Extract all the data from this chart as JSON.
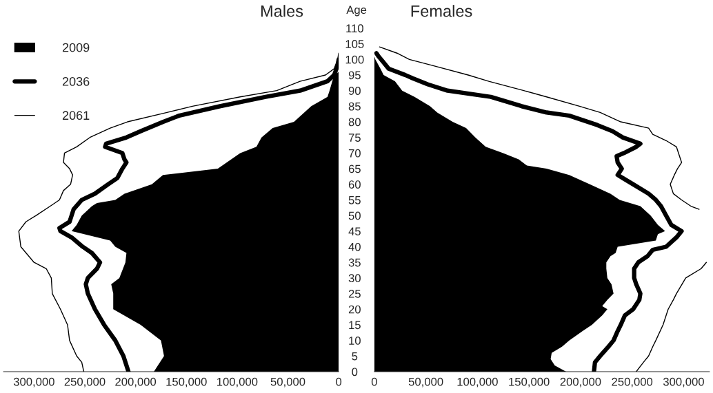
{
  "chart_data": [
    {
      "type": "line",
      "title": "Males",
      "orientation": "horizontal",
      "legend": "top left",
      "tick_labels": "x",
      "xlim": [
        330000,
        0
      ],
      "xticks": [
        {
          "value": 300000,
          "label": "300,000"
        },
        {
          "value": 250000,
          "label": "250,000"
        },
        {
          "value": 200000,
          "label": "200,000"
        },
        {
          "value": 150000,
          "label": "150,000"
        },
        {
          "value": 100000,
          "label": "100,000"
        },
        {
          "value": 50000,
          "label": "50,000"
        },
        0
      ],
      "ylim": [
        0,
        110
      ],
      "yticks": [
        0,
        5,
        10,
        15,
        20,
        25,
        30,
        35,
        40,
        45,
        50,
        55,
        60,
        65,
        70,
        75,
        80,
        85,
        90,
        95,
        100,
        105,
        110
      ],
      "series": [
        {
          "name": "2009",
          "type": "area",
          "color": "#000000",
          "x": [
            0,
            5,
            10,
            15,
            20,
            22,
            25,
            28,
            30,
            35,
            38,
            40,
            42,
            45,
            47,
            50,
            53,
            54,
            55,
            57,
            60,
            63,
            65,
            70,
            72,
            75,
            78,
            80,
            85,
            88,
            90,
            95,
            96
          ],
          "values": [
            182000,
            172000,
            175000,
            195000,
            222000,
            222000,
            222000,
            224000,
            216000,
            210000,
            209000,
            220000,
            225000,
            263000,
            258000,
            253000,
            243000,
            238000,
            220000,
            211000,
            184000,
            173000,
            119000,
            97000,
            81000,
            76000,
            65000,
            44000,
            27000,
            11000,
            9000,
            4500,
            0
          ]
        },
        {
          "name": "2036",
          "color": "#000000",
          "x": [
            0,
            5,
            10,
            15,
            20,
            25,
            28,
            30,
            33,
            35,
            38,
            40,
            43,
            45,
            46,
            48,
            50,
            52,
            55,
            57,
            60,
            62,
            65,
            67,
            68,
            70,
            72,
            73,
            75,
            77,
            80,
            82,
            85,
            88,
            90,
            93,
            95,
            98,
            100
          ],
          "values": [
            207000,
            212000,
            220000,
            231000,
            240000,
            247000,
            249000,
            247000,
            238000,
            235000,
            243000,
            252000,
            263000,
            274000,
            275000,
            265000,
            263000,
            261000,
            253000,
            240000,
            227000,
            218000,
            213000,
            209000,
            211000,
            213000,
            230000,
            229000,
            209000,
            195000,
            173000,
            157000,
            117000,
            72000,
            38000,
            11000,
            4500,
            1000,
            0
          ]
        },
        {
          "name": "2061",
          "color": "#000000",
          "x": [
            0,
            3,
            5,
            10,
            15,
            20,
            25,
            30,
            33,
            35,
            40,
            45,
            48,
            50,
            53,
            55,
            58,
            60,
            63,
            65,
            67,
            70,
            72,
            75,
            78,
            80,
            83,
            85,
            88,
            90,
            93,
            95,
            97,
            100,
            102
          ],
          "values": [
            251000,
            253000,
            258000,
            265000,
            267000,
            274000,
            282000,
            283000,
            288000,
            300000,
            313000,
            315000,
            308000,
            298000,
            284000,
            275000,
            271000,
            264000,
            262000,
            265000,
            271000,
            270000,
            258000,
            245000,
            225000,
            208000,
            169000,
            144000,
            97000,
            61000,
            38000,
            13000,
            4500,
            1000,
            0
          ]
        }
      ]
    },
    {
      "type": "line",
      "title": "Females",
      "ylabel": "Age",
      "orientation": "horizontal",
      "xlim": [
        0,
        325000
      ],
      "xticks": [
        0,
        {
          "value": 50000,
          "label": "50,000"
        },
        {
          "value": 100000,
          "label": "100,000"
        },
        {
          "value": 150000,
          "label": "150,000"
        },
        {
          "value": 200000,
          "label": "200,000"
        },
        {
          "value": 250000,
          "label": "250,000"
        },
        {
          "value": 300000,
          "label": "300,000"
        }
      ],
      "ylim": [
        0,
        110
      ],
      "yticks": [
        0,
        5,
        10,
        15,
        20,
        25,
        30,
        35,
        40,
        45,
        50,
        55,
        60,
        65,
        70,
        75,
        80,
        85,
        90,
        95,
        100,
        105,
        110
      ],
      "series": [
        {
          "type": "area",
          "color": "#000000",
          "x": [
            0,
            2,
            4,
            6,
            8,
            10,
            13,
            15,
            18,
            20,
            21,
            23,
            25,
            28,
            30,
            33,
            35,
            37,
            38,
            40,
            42,
            44,
            45,
            47,
            50,
            53,
            55,
            57,
            60,
            63,
            65,
            66,
            68,
            70,
            72,
            75,
            78,
            80,
            83,
            85,
            88,
            90,
            93,
            95,
            97,
            100,
            101
          ],
          "values": [
            186000,
            175000,
            171000,
            172000,
            182000,
            189000,
            202000,
            211000,
            221000,
            226000,
            221000,
            226000,
            232000,
            230000,
            226000,
            225000,
            225000,
            229000,
            234000,
            236000,
            273000,
            275000,
            282000,
            275000,
            268000,
            258000,
            238000,
            229000,
            209000,
            189000,
            167000,
            148000,
            140000,
            125000,
            108000,
            98000,
            89000,
            76000,
            61000,
            54000,
            39000,
            27000,
            20000,
            9000,
            6000,
            1000,
            0
          ]
        },
        {
          "color": "#000000",
          "x": [
            0,
            3,
            5,
            8,
            10,
            13,
            15,
            18,
            20,
            23,
            25,
            28,
            30,
            33,
            35,
            37,
            39,
            40,
            43,
            45,
            47,
            50,
            53,
            55,
            57,
            60,
            62,
            63,
            65,
            67,
            69,
            70,
            72,
            73,
            75,
            77,
            79,
            80,
            82,
            83,
            85,
            88,
            90,
            92,
            94,
            95,
            97,
            99,
            101,
            102
          ],
          "values": [
            213000,
            214000,
            219000,
            227000,
            232000,
            236000,
            239000,
            243000,
            251000,
            257000,
            258000,
            254000,
            252000,
            252000,
            256000,
            265000,
            270000,
            283000,
            293000,
            298000,
            288000,
            283000,
            278000,
            273000,
            266000,
            251000,
            241000,
            236000,
            240000,
            236000,
            235000,
            242000,
            254000,
            258000,
            241000,
            231000,
            216000,
            207000,
            189000,
            167000,
            143000,
            113000,
            71000,
            52000,
            37000,
            30000,
            14000,
            9000,
            4000,
            2000
          ]
        },
        {
          "color": "#000000",
          "x": [
            0,
            3,
            5,
            8,
            10,
            15,
            18,
            20,
            23,
            25,
            30,
            33,
            35,
            38,
            40,
            45,
            50,
            52,
            53,
            55,
            57,
            60,
            63,
            65,
            67,
            70,
            72,
            74,
            76,
            78,
            80,
            83,
            85,
            88,
            90,
            93,
            95,
            98,
            100,
            102,
            104
          ],
          "values": [
            254000,
            261000,
            266000,
            270000,
            273000,
            280000,
            283000,
            285000,
            290000,
            293000,
            302000,
            317000,
            322000,
            null,
            null,
            null,
            null,
            315000,
            307000,
            298000,
            290000,
            287000,
            291000,
            294000,
            298000,
            295000,
            293000,
            283000,
            270000,
            266000,
            239000,
            219000,
            199000,
            167000,
            145000,
            111000,
            91000,
            57000,
            34000,
            22000,
            5000
          ]
        }
      ]
    }
  ]
}
